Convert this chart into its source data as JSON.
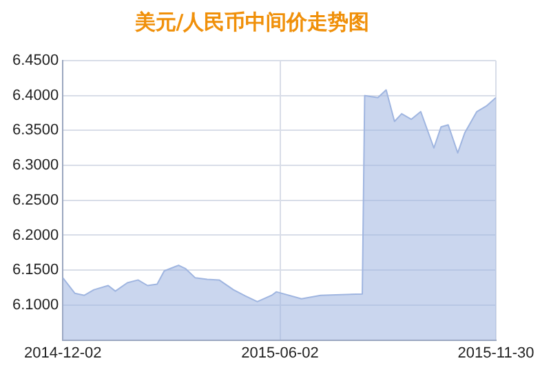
{
  "chart_data": {
    "type": "area",
    "title": "美元/人民币中间价走势图",
    "x": [
      "2014-12-02",
      "2014-12-12",
      "2014-12-20",
      "2014-12-28",
      "2015-01-09",
      "2015-01-15",
      "2015-01-25",
      "2015-02-03",
      "2015-02-11",
      "2015-02-19",
      "2015-02-25",
      "2015-03-09",
      "2015-03-15",
      "2015-03-23",
      "2015-04-02",
      "2015-04-12",
      "2015-04-24",
      "2015-05-04",
      "2015-05-14",
      "2015-05-26",
      "2015-05-30",
      "2015-06-20",
      "2015-07-06",
      "2015-08-10",
      "2015-08-12",
      "2015-08-23",
      "2015-08-30",
      "2015-09-06",
      "2015-09-12",
      "2015-09-20",
      "2015-09-28",
      "2015-10-09",
      "2015-10-15",
      "2015-10-21",
      "2015-10-29",
      "2015-11-04",
      "2015-11-14",
      "2015-11-22",
      "2015-11-30"
    ],
    "series": [
      {
        "color": "#9fb5e0",
        "values": [
          6.139,
          6.117,
          6.114,
          6.122,
          6.128,
          6.12,
          6.132,
          6.136,
          6.128,
          6.13,
          6.149,
          6.157,
          6.152,
          6.139,
          6.137,
          6.136,
          6.122,
          6.113,
          6.105,
          6.114,
          6.119,
          6.109,
          6.114,
          6.116,
          6.4,
          6.397,
          6.408,
          6.363,
          6.374,
          6.366,
          6.377,
          6.325,
          6.355,
          6.358,
          6.318,
          6.347,
          6.377,
          6.385,
          6.397
        ]
      }
    ],
    "xlim": [
      "2014-12-02",
      "2015-11-30"
    ],
    "xticks": [
      "2014-12-02",
      "2015-06-02",
      "2015-11-30"
    ],
    "ylim": [
      6.05,
      6.45
    ],
    "yticks": [
      {
        "value": 6.1,
        "label": "6.1000"
      },
      {
        "value": 6.15,
        "label": "6.1500"
      },
      {
        "value": 6.2,
        "label": "6.2000"
      },
      {
        "value": 6.25,
        "label": "6.2500"
      },
      {
        "value": 6.3,
        "label": "6.3000"
      },
      {
        "value": 6.35,
        "label": "6.3500"
      },
      {
        "value": 6.4,
        "label": "6.4000"
      },
      {
        "value": 6.45,
        "label": "6.4500"
      }
    ],
    "grid": true,
    "legend": false,
    "marker": "none"
  }
}
